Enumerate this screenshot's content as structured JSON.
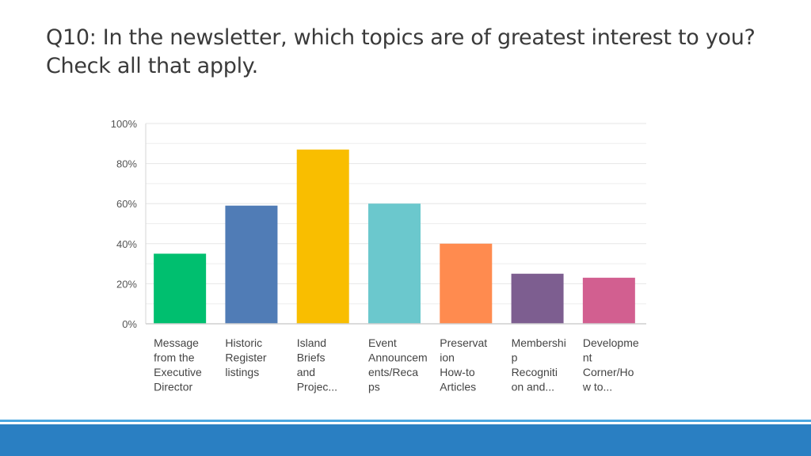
{
  "title": {
    "line1": "Q10: In the newsletter, which topics are of greatest interest to you?",
    "line2": "Check all that apply."
  },
  "chart_data": {
    "type": "bar",
    "categories": [
      [
        "Message",
        "from the",
        "Executive",
        "Director"
      ],
      [
        "Historic",
        "Register",
        "listings"
      ],
      [
        "Island",
        "Briefs",
        "and",
        "Projec..."
      ],
      [
        "Event",
        "Announcem",
        "ents/Reca",
        "ps"
      ],
      [
        "Preservat",
        "ion",
        "How-to",
        "Articles"
      ],
      [
        "Membershi",
        "p",
        "Recogniti",
        "on and..."
      ],
      [
        "Developme",
        "nt",
        "Corner/Ho",
        "w to..."
      ]
    ],
    "values": [
      35,
      59,
      87,
      60,
      40,
      25,
      23
    ],
    "colors": [
      "#00bf6f",
      "#507cb6",
      "#f9be00",
      "#6bc8cd",
      "#ff8b4f",
      "#7d5e90",
      "#d25f90"
    ],
    "y_ticks": [
      "0%",
      "20%",
      "40%",
      "60%",
      "80%",
      "100%"
    ],
    "ylim": [
      0,
      100
    ],
    "grid": true
  }
}
